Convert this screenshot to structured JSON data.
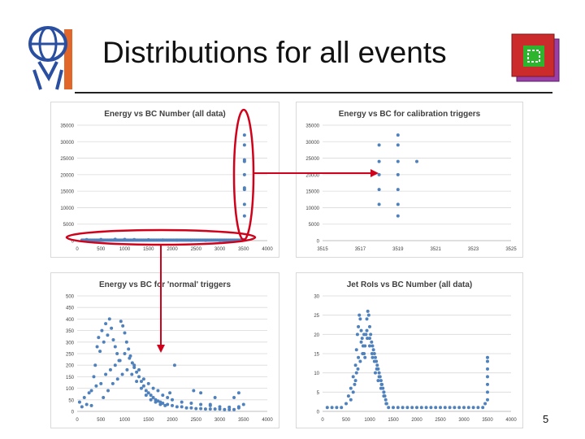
{
  "slide": {
    "title": "Distributions for all events",
    "page_number": "5"
  },
  "colors": {
    "marker": "#4f81bd",
    "annotation": "#d0021b",
    "rule": "#222222",
    "badge_outer": "#cc2b2b",
    "badge_back": "#9b3fa8",
    "badge_green": "#2db52d"
  },
  "icons": {
    "logo": "atlas-logo-icon",
    "badge": "trigger-badge-icon"
  },
  "chart_data": [
    {
      "id": "p1",
      "type": "scatter",
      "title": "Energy vs BC Number (all data)",
      "xlim": [
        0,
        4000
      ],
      "ylim": [
        0,
        35000
      ],
      "xticks": [
        0,
        500,
        1000,
        1500,
        2000,
        2500,
        3000,
        3500,
        4000
      ],
      "yticks": [
        0,
        5000,
        10000,
        15000,
        20000,
        25000,
        30000,
        35000
      ],
      "grid": true,
      "series": [
        {
          "points": [
            [
              3519,
              32000
            ],
            [
              3519,
              29000
            ],
            [
              3519,
              24500
            ],
            [
              3519,
              24000
            ],
            [
              3519,
              20000
            ],
            [
              3519,
              16000
            ],
            [
              3519,
              15500
            ],
            [
              3519,
              11000
            ],
            [
              3519,
              7500
            ],
            [
              200,
              300
            ],
            [
              500,
              350
            ],
            [
              800,
              400
            ],
            [
              1000,
              380
            ],
            [
              1200,
              300
            ],
            [
              1500,
              250
            ],
            [
              1800,
              200
            ],
            [
              2100,
              150
            ],
            [
              2400,
              120
            ],
            [
              2700,
              100
            ],
            [
              3000,
              100
            ],
            [
              3300,
              90
            ],
            [
              3500,
              300
            ]
          ]
        }
      ]
    },
    {
      "id": "p2",
      "type": "scatter",
      "title": "Energy vs BC for calibration triggers",
      "xlim": [
        3515,
        3525
      ],
      "ylim": [
        0,
        35000
      ],
      "xticks": [
        3515,
        3517,
        3519,
        3521,
        3523,
        3525
      ],
      "yticks": [
        0,
        5000,
        10000,
        15000,
        20000,
        25000,
        30000,
        35000
      ],
      "grid": true,
      "series": [
        {
          "points": [
            [
              3518,
              29000
            ],
            [
              3518,
              24000
            ],
            [
              3518,
              20000
            ],
            [
              3518,
              15500
            ],
            [
              3518,
              11000
            ],
            [
              3519,
              32000
            ],
            [
              3519,
              29000
            ],
            [
              3519,
              24000
            ],
            [
              3519,
              20000
            ],
            [
              3519,
              15500
            ],
            [
              3519,
              11000
            ],
            [
              3519,
              7500
            ],
            [
              3520,
              24000
            ]
          ]
        }
      ]
    },
    {
      "id": "p3",
      "type": "scatter",
      "title": "Energy vs BC for 'normal' triggers",
      "xlim": [
        0,
        4000
      ],
      "ylim": [
        0,
        500
      ],
      "xticks": [
        0,
        500,
        1000,
        1500,
        2000,
        2500,
        3000,
        3500,
        4000
      ],
      "yticks": [
        0,
        50,
        100,
        150,
        200,
        250,
        300,
        350,
        400,
        450,
        500
      ],
      "grid": true,
      "series": [
        {
          "points": [
            [
              50,
              40
            ],
            [
              100,
              20
            ],
            [
              150,
              60
            ],
            [
              200,
              30
            ],
            [
              250,
              80
            ],
            [
              300,
              25
            ],
            [
              350,
              150
            ],
            [
              380,
              200
            ],
            [
              420,
              280
            ],
            [
              450,
              320
            ],
            [
              480,
              260
            ],
            [
              520,
              350
            ],
            [
              560,
              300
            ],
            [
              600,
              380
            ],
            [
              640,
              330
            ],
            [
              680,
              400
            ],
            [
              720,
              360
            ],
            [
              760,
              310
            ],
            [
              800,
              280
            ],
            [
              840,
              250
            ],
            [
              880,
              220
            ],
            [
              920,
              390
            ],
            [
              960,
              370
            ],
            [
              1000,
              340
            ],
            [
              1040,
              300
            ],
            [
              1080,
              270
            ],
            [
              1120,
              240
            ],
            [
              1160,
              210
            ],
            [
              1200,
              190
            ],
            [
              1250,
              170
            ],
            [
              1300,
              150
            ],
            [
              1350,
              130
            ],
            [
              1400,
              110
            ],
            [
              1450,
              90
            ],
            [
              1500,
              80
            ],
            [
              1550,
              70
            ],
            [
              1600,
              60
            ],
            [
              1650,
              50
            ],
            [
              1700,
              45
            ],
            [
              1750,
              40
            ],
            [
              1800,
              35
            ],
            [
              1900,
              30
            ],
            [
              2000,
              25
            ],
            [
              2100,
              20
            ],
            [
              2200,
              20
            ],
            [
              2300,
              15
            ],
            [
              2400,
              15
            ],
            [
              2500,
              12
            ],
            [
              2600,
              12
            ],
            [
              2700,
              10
            ],
            [
              2800,
              10
            ],
            [
              2900,
              10
            ],
            [
              3000,
              10
            ],
            [
              3100,
              8
            ],
            [
              3200,
              8
            ],
            [
              3300,
              8
            ],
            [
              3400,
              20
            ],
            [
              3500,
              30
            ],
            [
              500,
              120
            ],
            [
              600,
              160
            ],
            [
              700,
              180
            ],
            [
              800,
              200
            ],
            [
              900,
              220
            ],
            [
              1000,
              250
            ],
            [
              1100,
              230
            ],
            [
              1200,
              200
            ],
            [
              1300,
              180
            ],
            [
              1400,
              140
            ],
            [
              1500,
              120
            ],
            [
              1600,
              100
            ],
            [
              1700,
              90
            ],
            [
              1800,
              70
            ],
            [
              1900,
              60
            ],
            [
              2000,
              50
            ],
            [
              2200,
              40
            ],
            [
              2400,
              35
            ],
            [
              2600,
              30
            ],
            [
              2800,
              25
            ],
            [
              3000,
              20
            ],
            [
              3200,
              18
            ],
            [
              3400,
              15
            ],
            [
              300,
              90
            ],
            [
              400,
              110
            ],
            [
              550,
              60
            ],
            [
              650,
              90
            ],
            [
              750,
              120
            ],
            [
              850,
              140
            ],
            [
              950,
              160
            ],
            [
              1050,
              180
            ],
            [
              1150,
              160
            ],
            [
              1250,
              130
            ],
            [
              1350,
              100
            ],
            [
              1450,
              70
            ],
            [
              1550,
              50
            ],
            [
              1650,
              40
            ],
            [
              1750,
              30
            ],
            [
              1850,
              25
            ],
            [
              2050,
              200
            ],
            [
              2450,
              90
            ],
            [
              2600,
              80
            ],
            [
              2900,
              60
            ],
            [
              3300,
              60
            ],
            [
              3400,
              80
            ],
            [
              2800,
              30
            ],
            [
              1950,
              80
            ]
          ]
        }
      ]
    },
    {
      "id": "p4",
      "type": "scatter",
      "title": "Jet RoIs vs BC Number (all data)",
      "xlim": [
        0,
        4000
      ],
      "ylim": [
        0,
        30
      ],
      "xticks": [
        0,
        500,
        1000,
        1500,
        2000,
        2500,
        3000,
        3500,
        4000
      ],
      "yticks": [
        0,
        5,
        10,
        15,
        20,
        25,
        30
      ],
      "grid": true,
      "series": [
        {
          "points": [
            [
              100,
              1
            ],
            [
              200,
              1
            ],
            [
              300,
              1
            ],
            [
              400,
              1
            ],
            [
              500,
              2
            ],
            [
              550,
              4
            ],
            [
              600,
              6
            ],
            [
              650,
              9
            ],
            [
              700,
              12
            ],
            [
              720,
              16
            ],
            [
              740,
              20
            ],
            [
              760,
              22
            ],
            [
              780,
              25
            ],
            [
              800,
              24
            ],
            [
              820,
              21
            ],
            [
              840,
              19
            ],
            [
              860,
              17
            ],
            [
              880,
              15
            ],
            [
              900,
              14
            ],
            [
              920,
              20
            ],
            [
              940,
              24
            ],
            [
              960,
              26
            ],
            [
              980,
              25
            ],
            [
              1000,
              22
            ],
            [
              1020,
              20
            ],
            [
              1040,
              18
            ],
            [
              1060,
              17
            ],
            [
              1080,
              16
            ],
            [
              1100,
              15
            ],
            [
              1120,
              14
            ],
            [
              1140,
              13
            ],
            [
              1160,
              12
            ],
            [
              1180,
              11
            ],
            [
              1200,
              10
            ],
            [
              1220,
              9
            ],
            [
              1240,
              8
            ],
            [
              1260,
              7
            ],
            [
              1280,
              6
            ],
            [
              1300,
              5
            ],
            [
              1320,
              4
            ],
            [
              1340,
              3
            ],
            [
              1360,
              2
            ],
            [
              1400,
              1
            ],
            [
              1500,
              1
            ],
            [
              1600,
              1
            ],
            [
              1700,
              1
            ],
            [
              1800,
              1
            ],
            [
              1900,
              1
            ],
            [
              2000,
              1
            ],
            [
              2100,
              1
            ],
            [
              2200,
              1
            ],
            [
              2300,
              1
            ],
            [
              2400,
              1
            ],
            [
              2500,
              1
            ],
            [
              2600,
              1
            ],
            [
              2700,
              1
            ],
            [
              2800,
              1
            ],
            [
              2900,
              1
            ],
            [
              3000,
              1
            ],
            [
              3100,
              1
            ],
            [
              3200,
              1
            ],
            [
              3300,
              1
            ],
            [
              3400,
              1
            ],
            [
              3450,
              2
            ],
            [
              3500,
              3
            ],
            [
              3500,
              5
            ],
            [
              3500,
              7
            ],
            [
              3500,
              9
            ],
            [
              3500,
              11
            ],
            [
              3500,
              13
            ],
            [
              3500,
              14
            ],
            [
              700,
              8
            ],
            [
              750,
              11
            ],
            [
              800,
              13
            ],
            [
              850,
              15
            ],
            [
              900,
              17
            ],
            [
              950,
              19
            ],
            [
              1000,
              17
            ],
            [
              1050,
              15
            ],
            [
              1100,
              13
            ],
            [
              1150,
              11
            ],
            [
              1200,
              9
            ],
            [
              1250,
              7
            ],
            [
              1300,
              5
            ],
            [
              600,
              3
            ],
            [
              650,
              5
            ],
            [
              680,
              7
            ],
            [
              720,
              10
            ],
            [
              760,
              14
            ],
            [
              820,
              18
            ],
            [
              880,
              20
            ],
            [
              940,
              21
            ],
            [
              1000,
              19
            ],
            [
              1060,
              14
            ],
            [
              1120,
              10
            ],
            [
              1180,
              8
            ],
            [
              1240,
              6
            ],
            [
              1300,
              4
            ],
            [
              1350,
              2
            ]
          ]
        }
      ]
    }
  ]
}
